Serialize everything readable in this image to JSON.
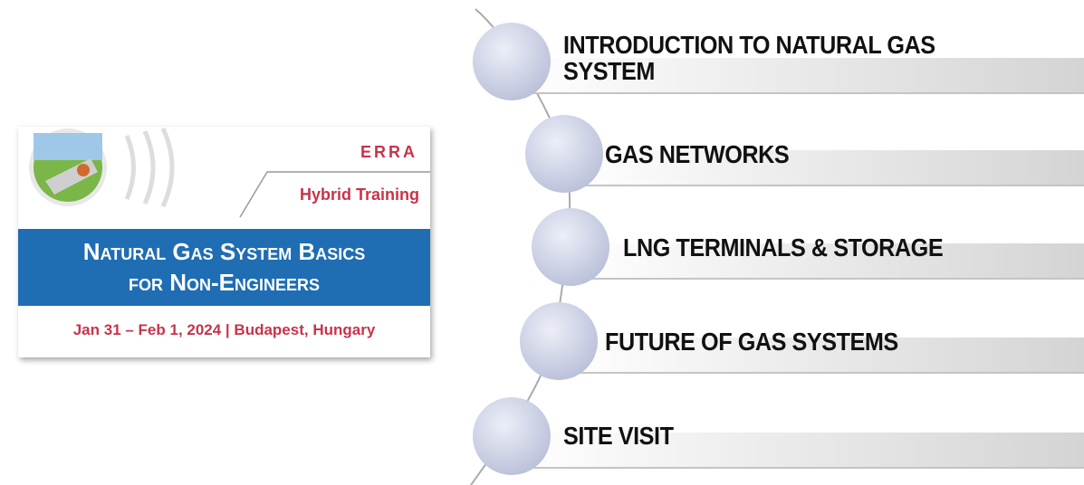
{
  "banner": {
    "logo": "ERRA",
    "tag": "Hybrid Training",
    "title_lines": [
      "Natural Gas System Basics",
      "for Non-Engineers"
    ],
    "date_place": "Jan 31 – Feb 1, 2024 | Budapest, Hungary"
  },
  "topics": [
    "INTRODUCTION TO NATURAL GAS SYSTEM",
    "GAS NETWORKS",
    "LNG TERMINALS & STORAGE",
    "FUTURE OF GAS SYSTEMS",
    "SITE VISIT"
  ]
}
